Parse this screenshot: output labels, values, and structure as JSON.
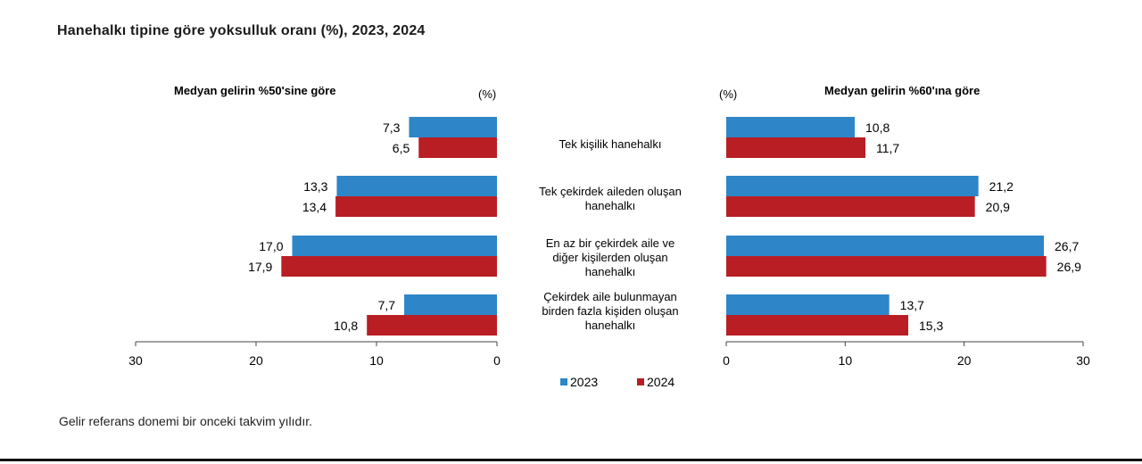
{
  "title": "Hanehalkı tipine göre yoksulluk oranı (%), 2023, 2024",
  "footnote": "Gelir referans donemi bir onceki takvim yılıdır.",
  "colors": {
    "series_2023": "#2e86c8",
    "series_2024": "#b81e24"
  },
  "chart_data": [
    {
      "type": "bar",
      "orientation": "horizontal",
      "reversed_x": true,
      "title": "Medyan gelirin %50'sine göre",
      "unit": "(%)",
      "categories": [
        "Tek kişilik hanehalkı",
        "Tek çekirdek aileden oluşan hanehalkı",
        "En az bir çekirdek aile ve diğer kişilerden oluşan hanehalkı",
        "Çekirdek aile bulunmayan birden fazla kişiden oluşan hanehalkı"
      ],
      "series": [
        {
          "name": "2023",
          "values": [
            7.3,
            13.3,
            17.0,
            7.7
          ],
          "labels": [
            "7,3",
            "13,3",
            "17,0",
            "7,7"
          ]
        },
        {
          "name": "2024",
          "values": [
            6.5,
            13.4,
            17.9,
            10.8
          ],
          "labels": [
            "6,5",
            "13,4",
            "17,9",
            "10,8"
          ]
        }
      ],
      "xlim": [
        0,
        30
      ],
      "xticks": [
        30,
        20,
        10,
        0
      ]
    },
    {
      "type": "bar",
      "orientation": "horizontal",
      "title": "Medyan gelirin %60'ına göre",
      "unit": "(%)",
      "categories": [
        "Tek kişilik hanehalkı",
        "Tek çekirdek aileden oluşan hanehalkı",
        "En az bir çekirdek aile ve diğer kişilerden oluşan hanehalkı",
        "Çekirdek aile bulunmayan birden fazla kişiden oluşan hanehalkı"
      ],
      "series": [
        {
          "name": "2023",
          "values": [
            10.8,
            21.2,
            26.7,
            13.7
          ],
          "labels": [
            "10,8",
            "21,2",
            "26,7",
            "13,7"
          ]
        },
        {
          "name": "2024",
          "values": [
            11.7,
            20.9,
            26.9,
            15.3
          ],
          "labels": [
            "11,7",
            "20,9",
            "26,9",
            "15,3"
          ]
        }
      ],
      "xlim": [
        0,
        30
      ],
      "xticks": [
        0,
        10,
        20,
        30
      ]
    }
  ],
  "category_label_lines": [
    [
      "Tek kişilik hanehalkı"
    ],
    [
      "Tek çekirdek aileden oluşan",
      "hanehalkı"
    ],
    [
      "En az bir çekirdek aile ve",
      "diğer kişilerden oluşan",
      "hanehalkı"
    ],
    [
      "Çekirdek aile bulunmayan",
      "birden fazla kişiden oluşan",
      "hanehalkı"
    ]
  ],
  "legend": {
    "position": "bottom-center",
    "items": [
      "2023",
      "2024"
    ]
  }
}
